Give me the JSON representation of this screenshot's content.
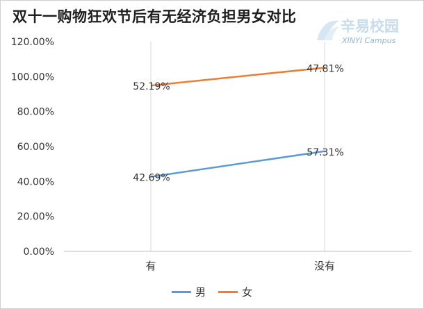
{
  "chart_data": {
    "type": "line",
    "title": "双十一购物狂欢节后有无经济负担男女对比",
    "categories": [
      "有",
      "没有"
    ],
    "series": [
      {
        "name": "男",
        "values": [
          42.69,
          57.31
        ],
        "labels": [
          "42.69%",
          "57.31%"
        ],
        "color": "#5b9bd5"
      },
      {
        "name": "女",
        "values": [
          52.19,
          47.81
        ],
        "labels": [
          "52.19%",
          "47.81%"
        ],
        "color": "#ed7d31"
      }
    ],
    "stacked": true,
    "y_ticks": [
      "0.00%",
      "20.00%",
      "40.00%",
      "60.00%",
      "80.00%",
      "100.00%",
      "120.00%"
    ],
    "ylim": [
      0,
      120
    ],
    "grid": "vertical",
    "legend_position": "bottom"
  },
  "watermark": {
    "name": "辛易校园",
    "subtitle": "XINYI Campus",
    "color": "#c7dcec"
  }
}
